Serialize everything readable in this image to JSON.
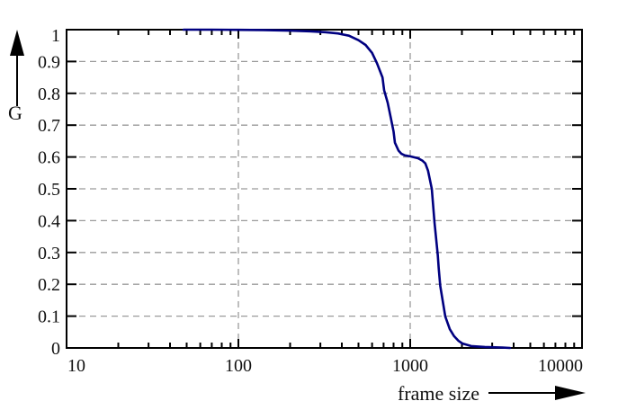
{
  "chart_data": {
    "type": "line",
    "title": "",
    "xlabel": "frame size",
    "ylabel": "G",
    "x_scale": "log",
    "xlim": [
      10,
      10000
    ],
    "ylim": [
      0,
      1
    ],
    "x_ticks": [
      "10",
      "100",
      "1000",
      "10000"
    ],
    "x_tick_values": [
      10,
      100,
      1000,
      10000
    ],
    "x_minor_ticks": "2-9 per decade",
    "y_ticks": [
      "0",
      "0.1",
      "0.2",
      "0.3",
      "0.4",
      "0.5",
      "0.6",
      "0.7",
      "0.8",
      "0.9",
      "1"
    ],
    "y_tick_values": [
      0,
      0.1,
      0.2,
      0.3,
      0.4,
      0.5,
      0.6,
      0.7,
      0.8,
      0.9,
      1
    ],
    "grid": {
      "horizontal_values": [
        0.1,
        0.2,
        0.3,
        0.4,
        0.5,
        0.6,
        0.7,
        0.8,
        0.9
      ],
      "vertical_values": [
        100,
        1000
      ],
      "style": "dashed-gray"
    },
    "legend": "none",
    "series": [
      {
        "name": "G",
        "color": "#000080",
        "points": [
          [
            48,
            1.0
          ],
          [
            70,
            1.0
          ],
          [
            100,
            0.9995
          ],
          [
            140,
            0.999
          ],
          [
            200,
            0.997
          ],
          [
            260,
            0.995
          ],
          [
            320,
            0.992
          ],
          [
            380,
            0.988
          ],
          [
            440,
            0.981
          ],
          [
            500,
            0.967
          ],
          [
            550,
            0.952
          ],
          [
            600,
            0.927
          ],
          [
            640,
            0.895
          ],
          [
            690,
            0.85
          ],
          [
            705,
            0.81
          ],
          [
            740,
            0.77
          ],
          [
            770,
            0.725
          ],
          [
            800,
            0.68
          ],
          [
            815,
            0.645
          ],
          [
            855,
            0.62
          ],
          [
            890,
            0.61
          ],
          [
            930,
            0.605
          ],
          [
            1000,
            0.602
          ],
          [
            1110,
            0.596
          ],
          [
            1180,
            0.588
          ],
          [
            1225,
            0.58
          ],
          [
            1270,
            0.557
          ],
          [
            1336,
            0.5
          ],
          [
            1385,
            0.395
          ],
          [
            1448,
            0.29
          ],
          [
            1465,
            0.25
          ],
          [
            1495,
            0.195
          ],
          [
            1600,
            0.099
          ],
          [
            1700,
            0.059
          ],
          [
            1800,
            0.037
          ],
          [
            1905,
            0.023
          ],
          [
            2010,
            0.014
          ],
          [
            2265,
            0.006
          ],
          [
            2713,
            0.003
          ],
          [
            3445,
            0.001
          ],
          [
            3810,
            0.0
          ]
        ]
      }
    ]
  },
  "colors": {
    "curve": "#000080",
    "grid": "#9a9a9a",
    "axis": "#000000",
    "background": "#ffffff"
  }
}
